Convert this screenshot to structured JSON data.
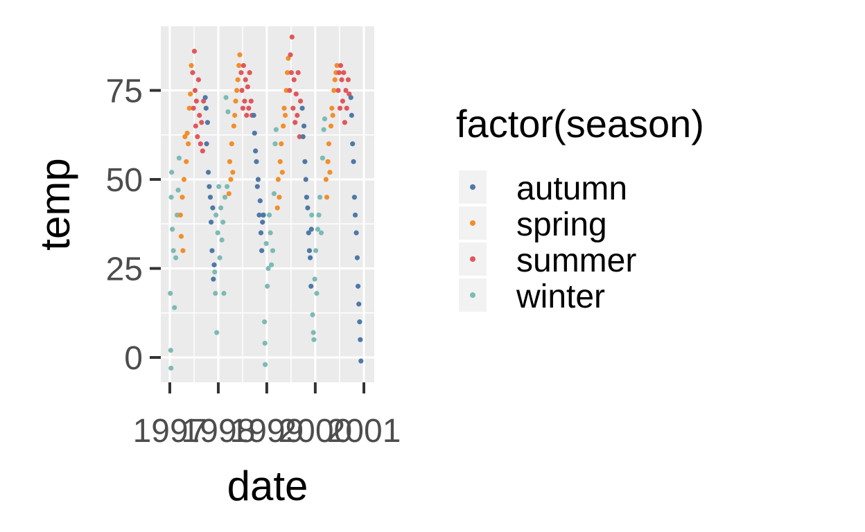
{
  "chart_data": {
    "type": "scatter",
    "xlabel": "date",
    "ylabel": "temp",
    "xlim": [
      "1997-01-01",
      "2001-01-01"
    ],
    "ylim": [
      -7,
      93
    ],
    "x_ticks": [
      "1997",
      "1998",
      "1999",
      "2000",
      "2001"
    ],
    "y_ticks": [
      0,
      25,
      50,
      75
    ],
    "grid": true,
    "panel_background": "#ebebeb",
    "legend": {
      "title": "factor(season)",
      "placement": "right",
      "entries": [
        "autumn",
        "spring",
        "summer",
        "winter"
      ]
    },
    "series": [
      {
        "name": "winter",
        "color": "#7dbab4",
        "points": [
          [
            "1997-01-05",
            18
          ],
          [
            "1997-01-08",
            2
          ],
          [
            "1997-01-10",
            -3
          ],
          [
            "1997-01-12",
            45
          ],
          [
            "1997-01-15",
            52
          ],
          [
            "1997-01-20",
            36
          ],
          [
            "1997-01-28",
            30
          ],
          [
            "1997-02-05",
            14
          ],
          [
            "1997-02-15",
            28
          ],
          [
            "1997-02-25",
            40
          ],
          [
            "1997-03-05",
            47
          ],
          [
            "1997-03-12",
            56
          ],
          [
            "1997-12-05",
            24
          ],
          [
            "1997-12-10",
            18
          ],
          [
            "1997-12-15",
            40
          ],
          [
            "1997-12-20",
            7
          ],
          [
            "1997-12-28",
            35
          ],
          [
            "1998-01-05",
            48
          ],
          [
            "1998-01-12",
            28
          ],
          [
            "1998-01-20",
            42
          ],
          [
            "1998-01-28",
            33
          ],
          [
            "1998-02-05",
            38
          ],
          [
            "1998-02-12",
            18
          ],
          [
            "1998-02-20",
            45
          ],
          [
            "1998-02-28",
            73
          ],
          [
            "1998-03-08",
            48
          ],
          [
            "1998-03-15",
            69
          ],
          [
            "1998-12-10",
            40
          ],
          [
            "1998-12-15",
            10
          ],
          [
            "1998-12-18",
            4
          ],
          [
            "1998-12-20",
            -2
          ],
          [
            "1998-12-28",
            32
          ],
          [
            "1999-01-05",
            20
          ],
          [
            "1999-01-12",
            25
          ],
          [
            "1999-01-20",
            40
          ],
          [
            "1999-01-28",
            35
          ],
          [
            "1999-02-05",
            26
          ],
          [
            "1999-02-15",
            30
          ],
          [
            "1999-02-25",
            46
          ],
          [
            "1999-03-05",
            60
          ],
          [
            "1999-03-12",
            64
          ],
          [
            "1999-12-05",
            40
          ],
          [
            "1999-12-12",
            12
          ],
          [
            "1999-12-18",
            7
          ],
          [
            "1999-12-22",
            5
          ],
          [
            "1999-12-28",
            22
          ],
          [
            "2000-01-05",
            30
          ],
          [
            "2000-01-12",
            18
          ],
          [
            "2000-01-20",
            36
          ],
          [
            "2000-01-28",
            40
          ],
          [
            "2000-02-05",
            45
          ],
          [
            "2000-02-15",
            35
          ],
          [
            "2000-02-25",
            56
          ],
          [
            "2000-03-05",
            64
          ],
          [
            "2000-03-12",
            67
          ]
        ]
      },
      {
        "name": "spring",
        "color": "#f28e2b",
        "points": [
          [
            "1997-03-22",
            40
          ],
          [
            "1997-03-28",
            34
          ],
          [
            "1997-04-05",
            45
          ],
          [
            "1997-04-10",
            30
          ],
          [
            "1997-04-18",
            50
          ],
          [
            "1997-04-25",
            62
          ],
          [
            "1997-05-05",
            55
          ],
          [
            "1997-05-12",
            63
          ],
          [
            "1997-05-20",
            60
          ],
          [
            "1997-05-28",
            70
          ],
          [
            "1997-06-05",
            74
          ],
          [
            "1997-06-12",
            82
          ],
          [
            "1998-03-22",
            46
          ],
          [
            "1998-03-28",
            55
          ],
          [
            "1998-04-05",
            50
          ],
          [
            "1998-04-12",
            60
          ],
          [
            "1998-04-20",
            52
          ],
          [
            "1998-04-28",
            65
          ],
          [
            "1998-05-05",
            68
          ],
          [
            "1998-05-12",
            72
          ],
          [
            "1998-05-20",
            75
          ],
          [
            "1998-05-28",
            78
          ],
          [
            "1998-06-05",
            82
          ],
          [
            "1998-06-12",
            85
          ],
          [
            "1999-03-22",
            42
          ],
          [
            "1999-03-28",
            50
          ],
          [
            "1999-04-05",
            45
          ],
          [
            "1999-04-12",
            55
          ],
          [
            "1999-04-20",
            60
          ],
          [
            "1999-04-28",
            52
          ],
          [
            "1999-05-05",
            65
          ],
          [
            "1999-05-12",
            70
          ],
          [
            "1999-05-20",
            68
          ],
          [
            "1999-05-28",
            75
          ],
          [
            "1999-06-05",
            80
          ],
          [
            "1999-06-12",
            84
          ],
          [
            "2000-03-22",
            50
          ],
          [
            "2000-03-28",
            45
          ],
          [
            "2000-04-05",
            55
          ],
          [
            "2000-04-12",
            60
          ],
          [
            "2000-04-20",
            52
          ],
          [
            "2000-04-28",
            65
          ],
          [
            "2000-05-05",
            70
          ],
          [
            "2000-05-12",
            68
          ],
          [
            "2000-05-20",
            75
          ],
          [
            "2000-05-28",
            78
          ],
          [
            "2000-06-05",
            80
          ],
          [
            "2000-06-12",
            82
          ]
        ]
      },
      {
        "name": "summer",
        "color": "#e15759",
        "points": [
          [
            "1997-06-22",
            80
          ],
          [
            "1997-06-28",
            70
          ],
          [
            "1997-07-05",
            86
          ],
          [
            "1997-07-10",
            75
          ],
          [
            "1997-07-15",
            65
          ],
          [
            "1997-07-20",
            72
          ],
          [
            "1997-07-28",
            62
          ],
          [
            "1997-08-05",
            78
          ],
          [
            "1997-08-12",
            68
          ],
          [
            "1997-08-20",
            60
          ],
          [
            "1997-08-28",
            66
          ],
          [
            "1997-09-05",
            58
          ],
          [
            "1997-09-12",
            72
          ],
          [
            "1998-06-22",
            80
          ],
          [
            "1998-06-28",
            75
          ],
          [
            "1998-07-05",
            70
          ],
          [
            "1998-07-10",
            82
          ],
          [
            "1998-07-18",
            72
          ],
          [
            "1998-07-25",
            78
          ],
          [
            "1998-08-02",
            68
          ],
          [
            "1998-08-10",
            76
          ],
          [
            "1998-08-18",
            70
          ],
          [
            "1998-08-25",
            80
          ],
          [
            "1998-09-05",
            72
          ],
          [
            "1998-09-12",
            68
          ],
          [
            "1999-06-22",
            75
          ],
          [
            "1999-06-28",
            85
          ],
          [
            "1999-07-05",
            80
          ],
          [
            "1999-07-10",
            90
          ],
          [
            "1999-07-18",
            70
          ],
          [
            "1999-07-25",
            78
          ],
          [
            "1999-08-02",
            66
          ],
          [
            "1999-08-10",
            74
          ],
          [
            "1999-08-18",
            68
          ],
          [
            "1999-08-25",
            80
          ],
          [
            "1999-09-05",
            62
          ],
          [
            "1999-09-12",
            72
          ],
          [
            "2000-06-22",
            75
          ],
          [
            "2000-06-28",
            80
          ],
          [
            "2000-07-05",
            70
          ],
          [
            "2000-07-10",
            82
          ],
          [
            "2000-07-18",
            78
          ],
          [
            "2000-07-25",
            72
          ],
          [
            "2000-08-02",
            80
          ],
          [
            "2000-08-10",
            66
          ],
          [
            "2000-08-18",
            75
          ],
          [
            "2000-08-25",
            70
          ],
          [
            "2000-09-05",
            78
          ],
          [
            "2000-09-12",
            74
          ]
        ]
      },
      {
        "name": "autumn",
        "color": "#4e79a7",
        "points": [
          [
            "1997-09-25",
            73
          ],
          [
            "1997-10-01",
            70
          ],
          [
            "1997-10-05",
            60
          ],
          [
            "1997-10-12",
            66
          ],
          [
            "1997-10-18",
            52
          ],
          [
            "1997-10-25",
            48
          ],
          [
            "1997-11-02",
            45
          ],
          [
            "1997-11-08",
            38
          ],
          [
            "1997-11-15",
            30
          ],
          [
            "1997-11-20",
            42
          ],
          [
            "1997-11-25",
            22
          ],
          [
            "1997-12-01",
            26
          ],
          [
            "1998-09-25",
            68
          ],
          [
            "1998-10-01",
            63
          ],
          [
            "1998-10-08",
            58
          ],
          [
            "1998-10-15",
            55
          ],
          [
            "1998-10-22",
            48
          ],
          [
            "1998-10-28",
            50
          ],
          [
            "1998-11-05",
            40
          ],
          [
            "1998-11-12",
            44
          ],
          [
            "1998-11-18",
            35
          ],
          [
            "1998-11-24",
            30
          ],
          [
            "1998-11-30",
            38
          ],
          [
            "1998-12-04",
            40
          ],
          [
            "1999-09-25",
            70
          ],
          [
            "1999-10-01",
            62
          ],
          [
            "1999-10-08",
            65
          ],
          [
            "1999-10-15",
            55
          ],
          [
            "1999-10-22",
            50
          ],
          [
            "1999-10-28",
            45
          ],
          [
            "1999-11-05",
            42
          ],
          [
            "1999-11-12",
            35
          ],
          [
            "1999-11-18",
            30
          ],
          [
            "1999-11-24",
            28
          ],
          [
            "1999-11-30",
            20
          ],
          [
            "1999-12-03",
            36
          ],
          [
            "2000-09-25",
            73
          ],
          [
            "2000-10-01",
            68
          ],
          [
            "2000-10-08",
            60
          ],
          [
            "2000-10-15",
            55
          ],
          [
            "2000-10-22",
            45
          ],
          [
            "2000-10-28",
            40
          ],
          [
            "2000-11-05",
            35
          ],
          [
            "2000-11-12",
            28
          ],
          [
            "2000-11-18",
            20
          ],
          [
            "2000-11-24",
            15
          ],
          [
            "2000-11-30",
            10
          ],
          [
            "2000-12-05",
            5
          ],
          [
            "2000-12-10",
            -1
          ]
        ]
      }
    ]
  }
}
